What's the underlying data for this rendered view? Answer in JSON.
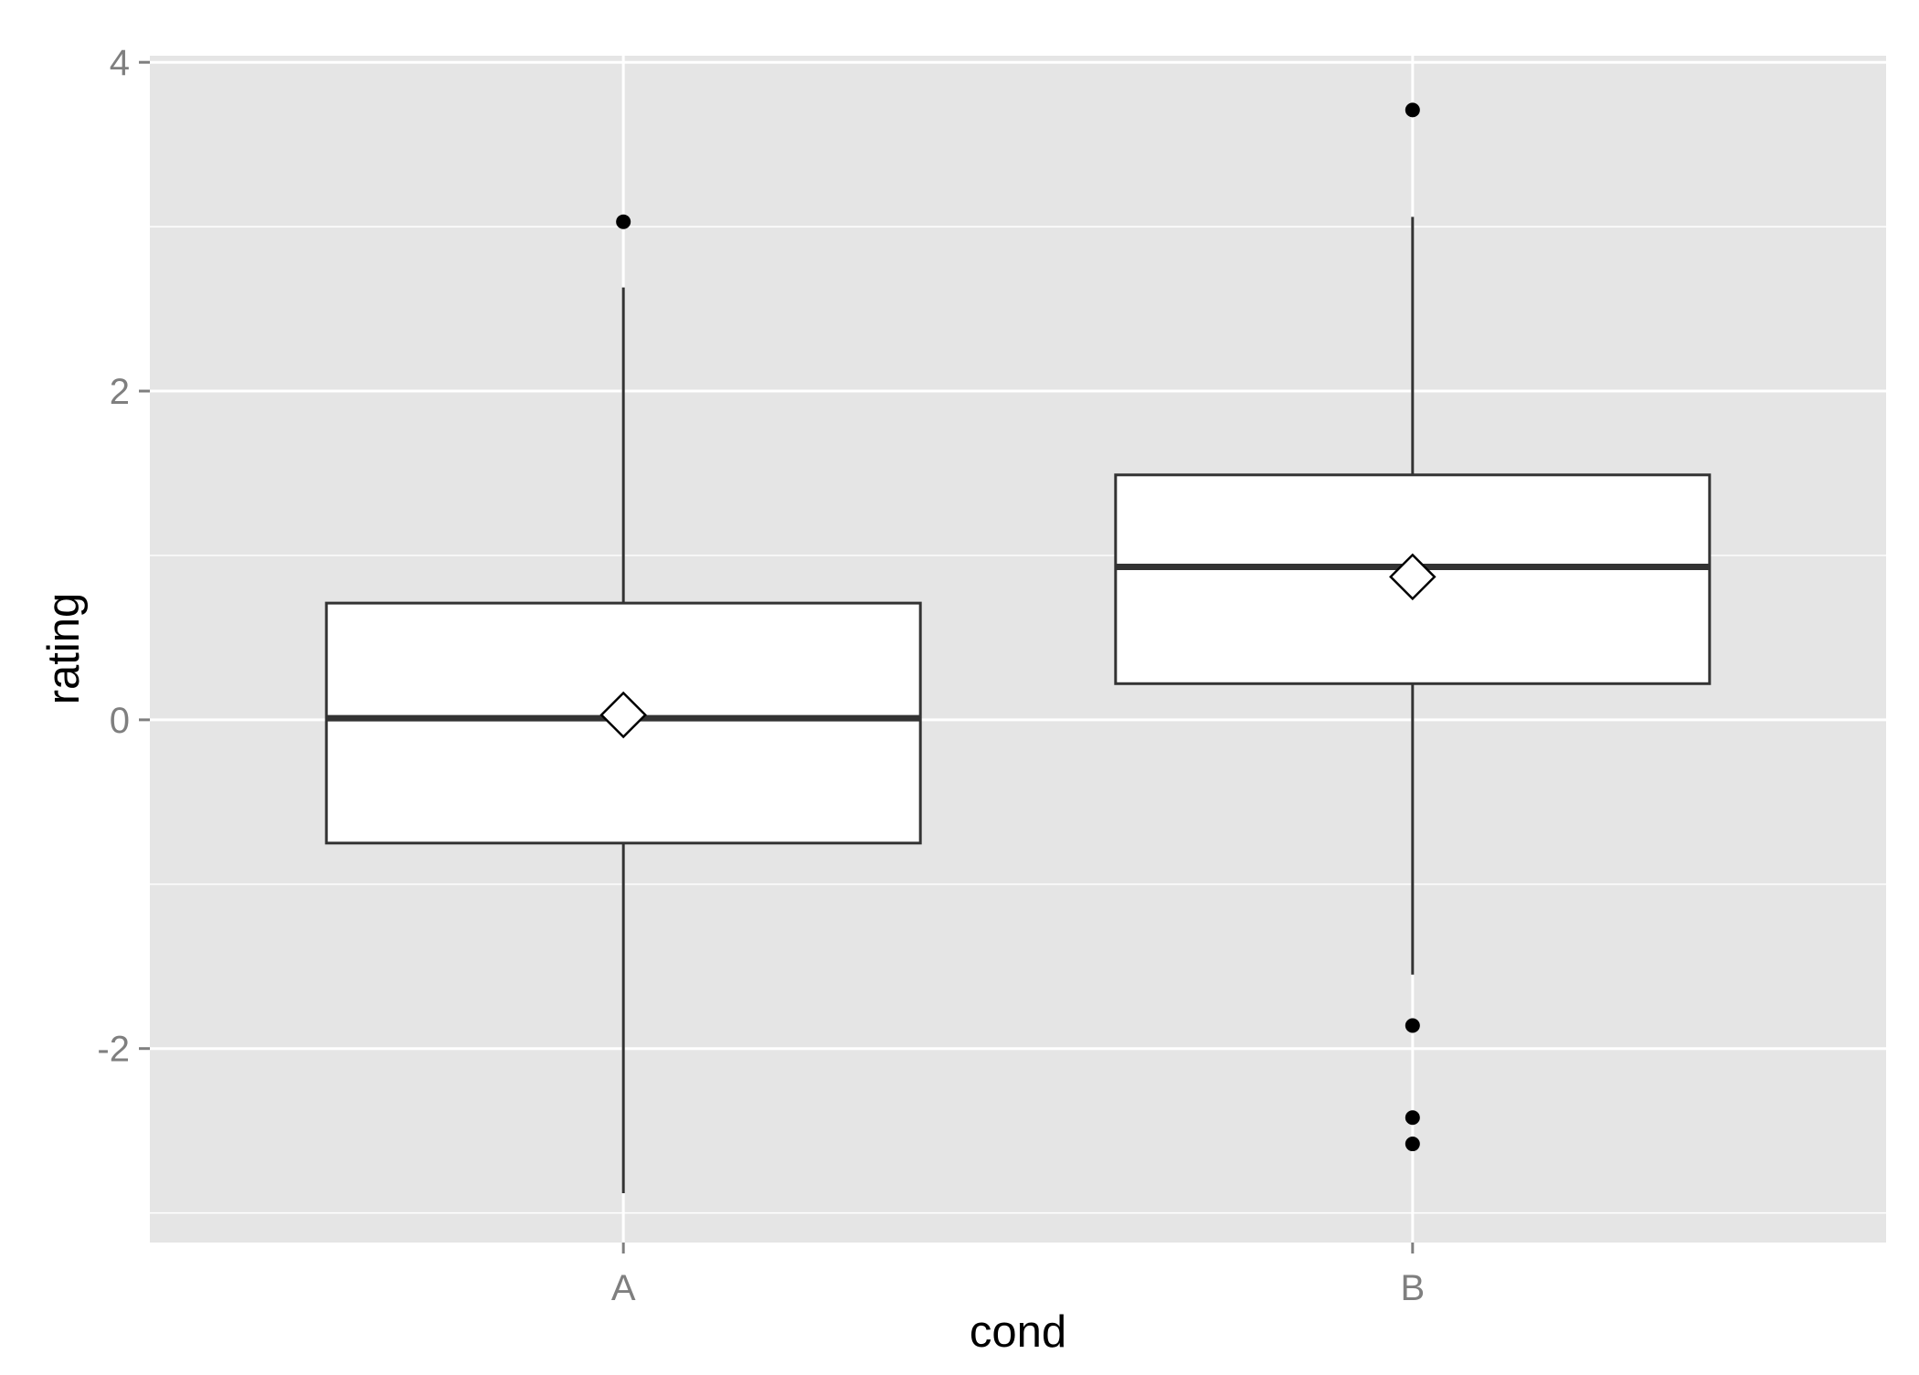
{
  "chart_data": {
    "type": "box",
    "title": "",
    "xlabel": "cond",
    "ylabel": "rating",
    "ylim": [
      -3.18,
      4.04
    ],
    "yticks": [
      -2,
      0,
      2,
      4
    ],
    "ytick_labels": [
      "-2",
      "0",
      "2",
      "4"
    ],
    "grid": true,
    "legend": "none",
    "categories": [
      "A",
      "B"
    ],
    "boxes": [
      {
        "category": "A",
        "whisker_low": -2.88,
        "q1": -0.75,
        "median": 0.01,
        "q3": 0.71,
        "whisker_high": 2.63,
        "mean": 0.03,
        "outliers": [
          3.03
        ]
      },
      {
        "category": "B",
        "whisker_low": -1.55,
        "q1": 0.22,
        "median": 0.93,
        "q3": 1.49,
        "whisker_high": 3.06,
        "mean": 0.87,
        "outliers": [
          3.71,
          -1.86,
          -2.42,
          -2.58
        ]
      }
    ],
    "colors": {
      "panel_background": "#e5e5e5",
      "grid": "#ffffff",
      "box_fill": "#ffffff",
      "box_stroke": "#333333",
      "outlier": "#000000",
      "tick_text": "#7f7f7f",
      "axis_title": "#000000"
    }
  }
}
